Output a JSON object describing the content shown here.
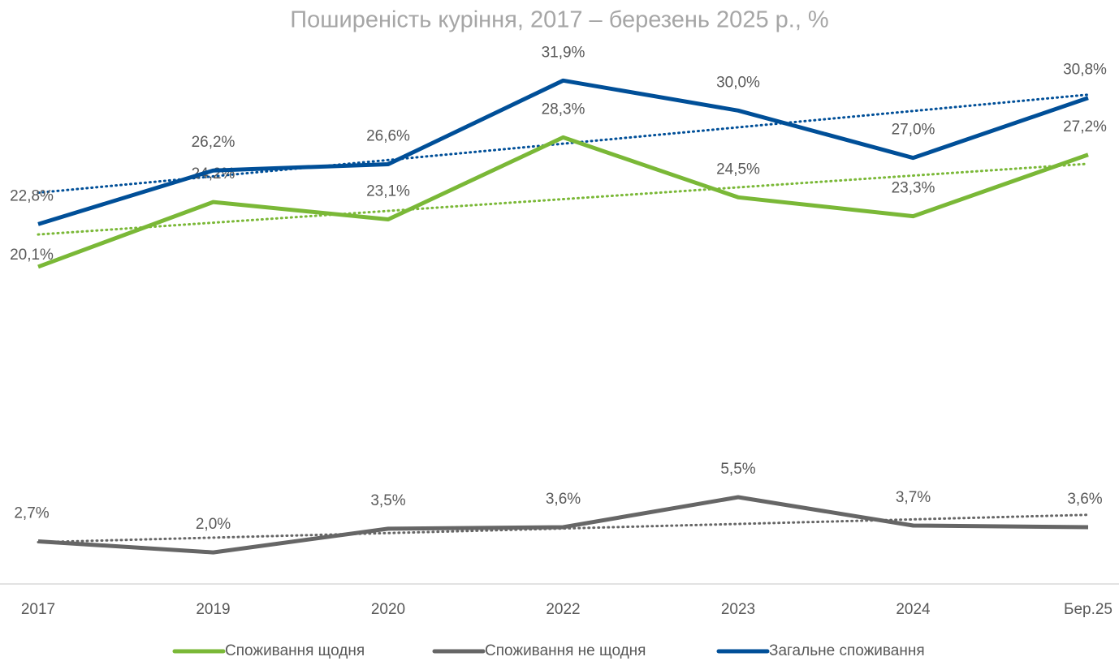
{
  "chart_data": {
    "type": "line",
    "title": "Поширеність куріння, 2017 – березень 2025 р., %",
    "categories": [
      "2017",
      "2019",
      "2020",
      "2022",
      "2023",
      "2024",
      "Бер.25"
    ],
    "ylim": [
      0,
      35
    ],
    "trendline": true,
    "series": [
      {
        "name": "Споживання щодня",
        "color": "#7ab837",
        "values": [
          20.1,
          24.2,
          23.1,
          28.3,
          24.5,
          23.3,
          27.2
        ],
        "value_labels": [
          "20,1%",
          "24,2%",
          "23,1%",
          "28,3%",
          "24,5%",
          "23,3%",
          "27,2%"
        ]
      },
      {
        "name": "Споживання не щодня",
        "color": "#666666",
        "values": [
          2.7,
          2.0,
          3.5,
          3.6,
          5.5,
          3.7,
          3.6
        ],
        "value_labels": [
          "2,7%",
          "2,0%",
          "3,5%",
          "3,6%",
          "5,5%",
          "3,7%",
          "3,6%"
        ]
      },
      {
        "name": "Загальне споживання",
        "color": "#004f98",
        "values": [
          22.8,
          26.2,
          26.6,
          31.9,
          30.0,
          27.0,
          30.8
        ],
        "value_labels": [
          "22,8%",
          "26,2%",
          "26,6%",
          "31,9%",
          "30,0%",
          "27,0%",
          "30,8%"
        ]
      }
    ]
  }
}
